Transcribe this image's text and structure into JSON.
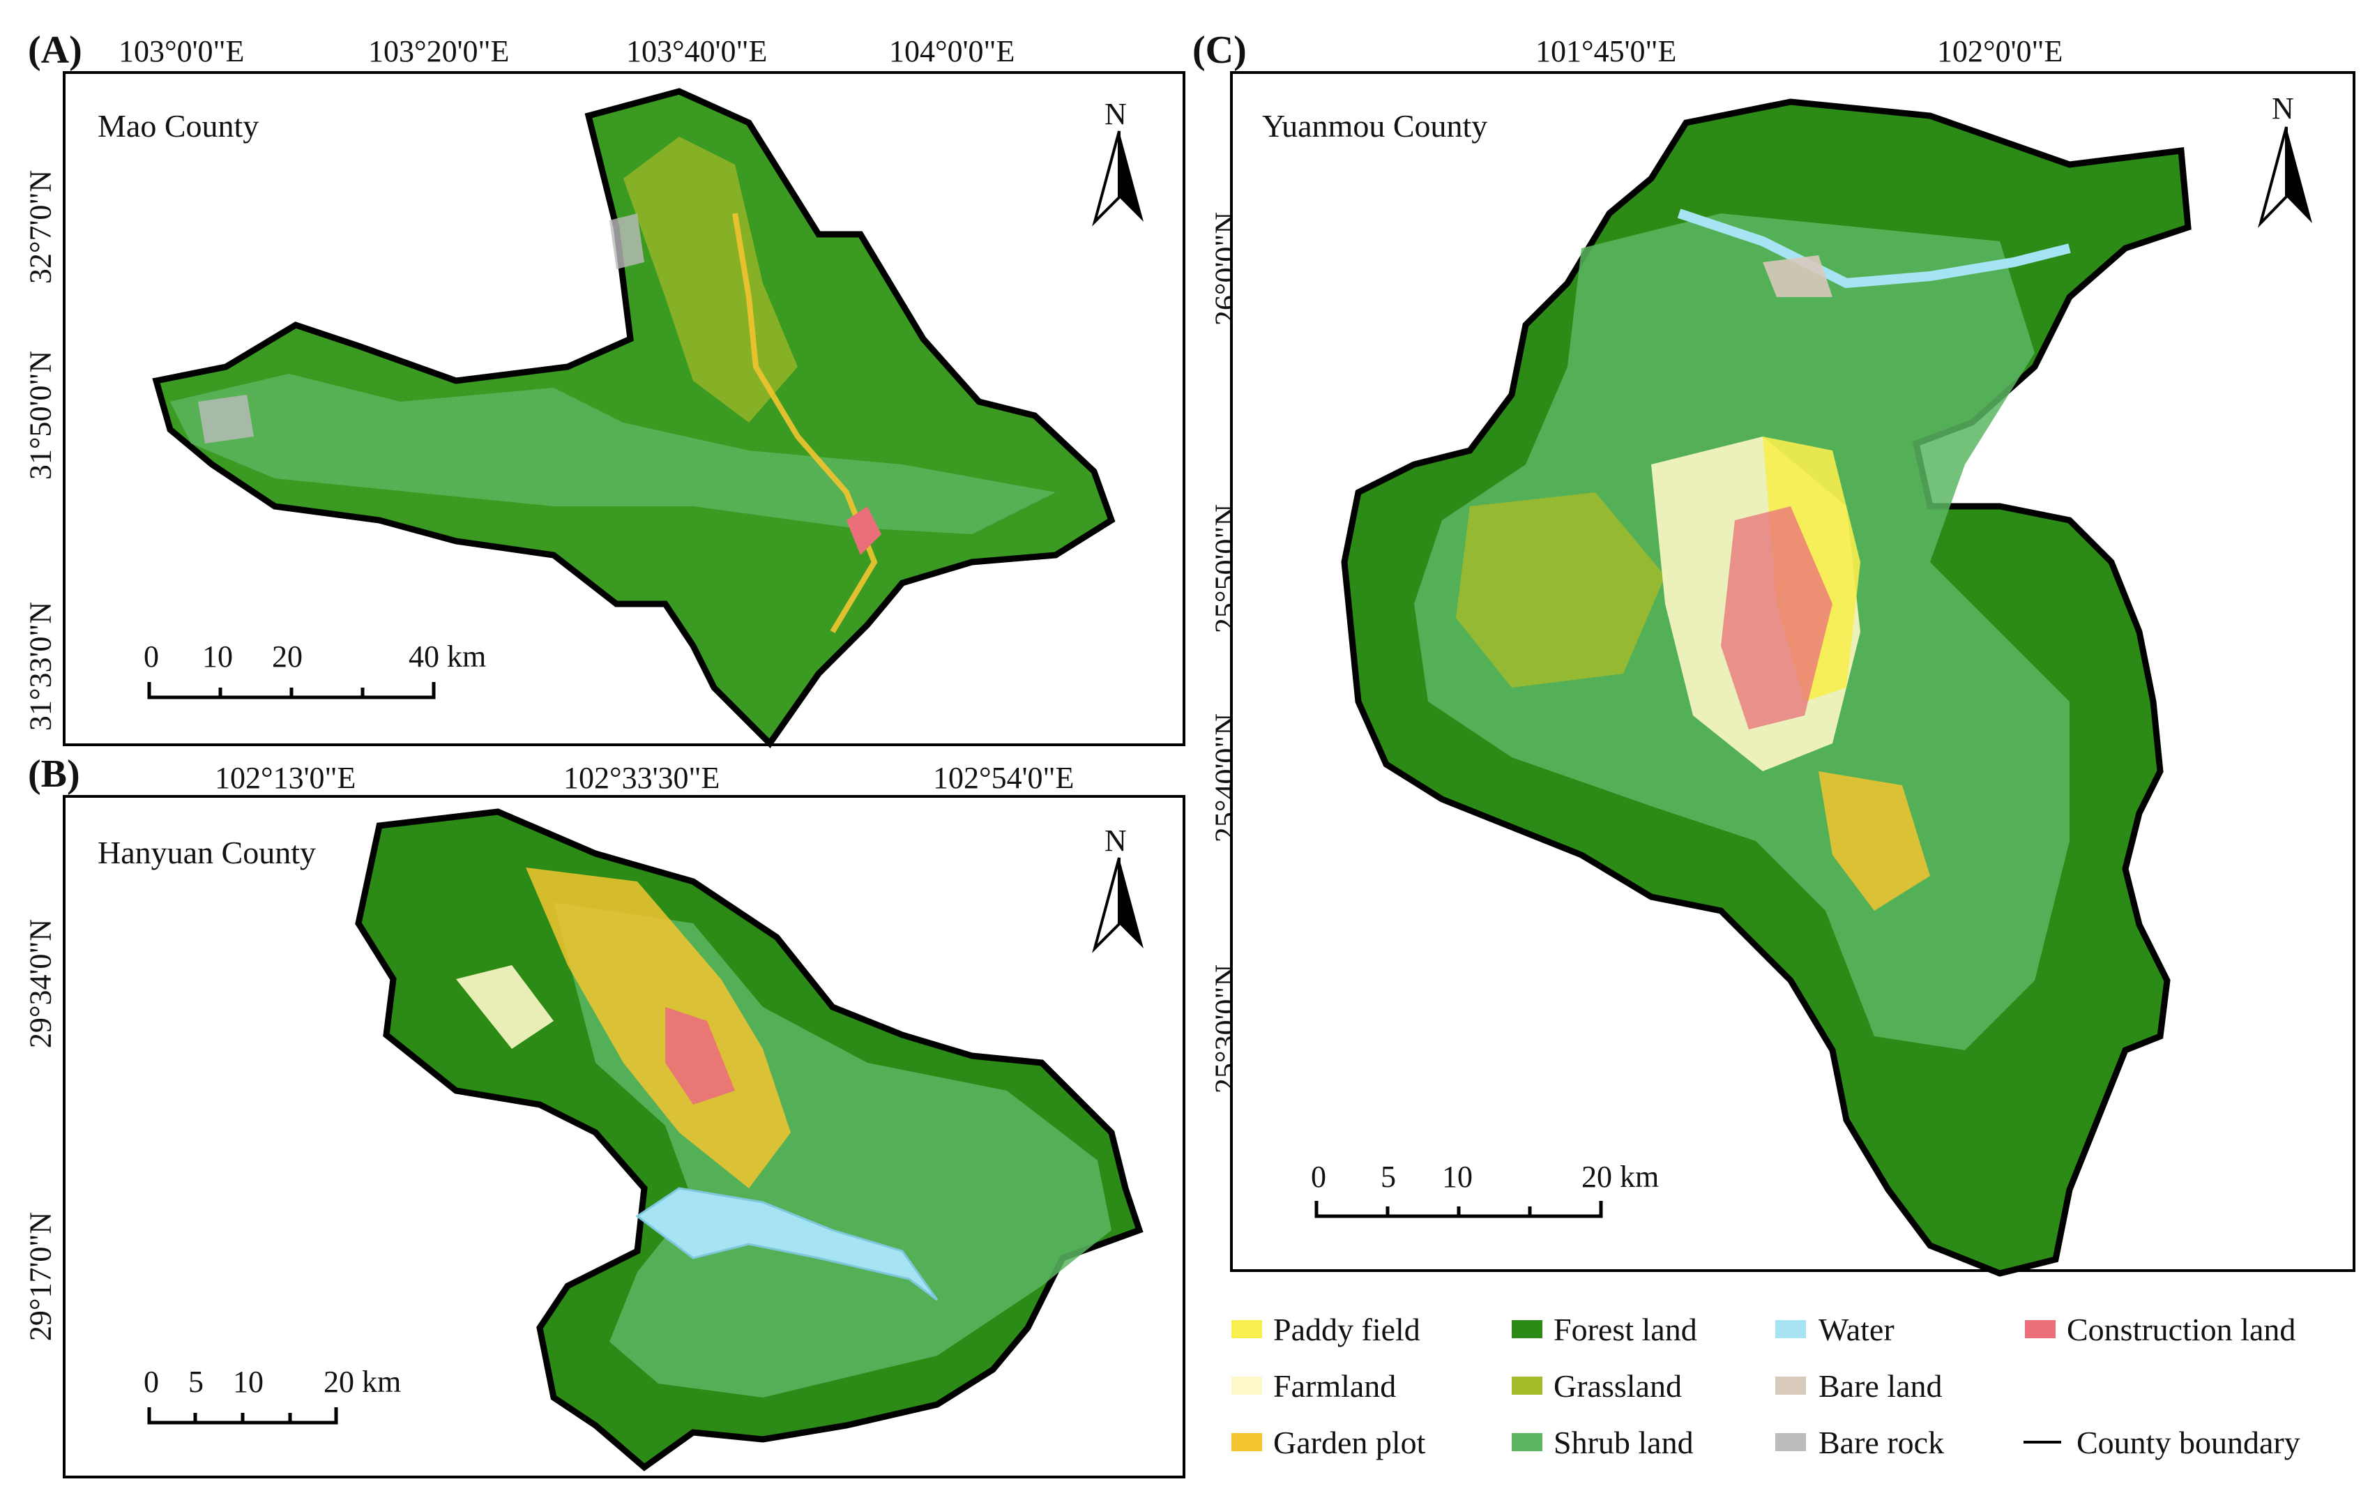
{
  "panels": {
    "a": {
      "label": "(A)",
      "county": "Mao County",
      "lon_ticks": [
        "103°0'0\"E",
        "103°20'0\"E",
        "103°40'0\"E",
        "104°0'0\"E"
      ],
      "lat_ticks": [
        "32°7'0\"N",
        "31°50'0\"N",
        "31°33'0\"N"
      ],
      "scale": [
        "0",
        "10",
        "20",
        "40 km"
      ]
    },
    "b": {
      "label": "(B)",
      "county": "Hanyuan County",
      "lon_ticks": [
        "102°13'0\"E",
        "102°33'30\"E",
        "102°54'0\"E"
      ],
      "lat_ticks": [
        "29°34'0\"N",
        "29°17'0\"N"
      ],
      "scale": [
        "0",
        "5",
        "10",
        "20 km"
      ]
    },
    "c": {
      "label": "(C)",
      "county": "Yuanmou County",
      "lon_ticks": [
        "101°45'0\"E",
        "102°0'0\"E"
      ],
      "lat_ticks": [
        "26°0'0\"N",
        "25°50'0\"N",
        "25°40'0\"N",
        "25°30'0\"N"
      ],
      "scale": [
        "0",
        "5",
        "10",
        "20 km"
      ]
    }
  },
  "north_symbol": {
    "letter": "N",
    "icon": "north-arrow-icon"
  },
  "legend": [
    {
      "label": "Paddy field",
      "color": "#f7ee4f"
    },
    {
      "label": "Forest land",
      "color": "#2c8a16"
    },
    {
      "label": "Water",
      "color": "#a6e4f3"
    },
    {
      "label": "Construction land",
      "color": "#ea6f7b"
    },
    {
      "label": "Farmland",
      "color": "#fdf8c8"
    },
    {
      "label": "Grassland",
      "color": "#a6bb2a"
    },
    {
      "label": "Bare land",
      "color": "#d8c9bd"
    },
    {
      "label": "Garden plot",
      "color": "#f2c430"
    },
    {
      "label": "Shrub land",
      "color": "#5cb662"
    },
    {
      "label": "Bare rock",
      "color": "#bcbcbc"
    },
    {
      "label": "County boundary",
      "color": "#000000"
    }
  ]
}
